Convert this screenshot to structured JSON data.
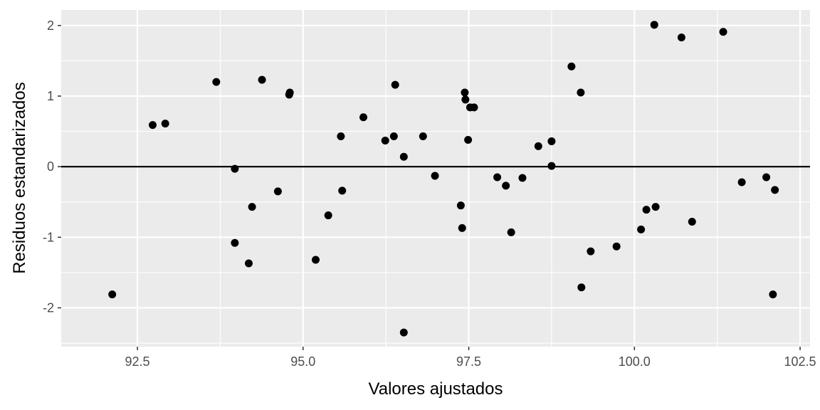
{
  "chart_data": {
    "type": "scatter",
    "title": "",
    "xlabel": "Valores ajustados",
    "ylabel": "Residuos estandarizados",
    "xlim": [
      91.35,
      102.65
    ],
    "ylim": [
      -2.55,
      2.22
    ],
    "xticks": [
      92.5,
      95.0,
      97.5,
      100.0,
      102.5
    ],
    "xtick_labels": [
      "92.5",
      "95.0",
      "97.5",
      "100.0",
      "102.5"
    ],
    "yticks": [
      -2,
      -1,
      0,
      1,
      2
    ],
    "ytick_labels": [
      "-2",
      "-1",
      "0",
      "1",
      "2"
    ],
    "grid": true,
    "hline": 0,
    "colors": {
      "panel": "#ebebeb",
      "grid": "#ffffff",
      "point": "#000000",
      "hline": "#000000"
    },
    "points": [
      {
        "x": 92.12,
        "y": -1.81
      },
      {
        "x": 92.73,
        "y": 0.59
      },
      {
        "x": 92.92,
        "y": 0.61
      },
      {
        "x": 93.69,
        "y": 1.2
      },
      {
        "x": 93.97,
        "y": -0.03
      },
      {
        "x": 93.97,
        "y": -1.08
      },
      {
        "x": 94.18,
        "y": -1.37
      },
      {
        "x": 94.23,
        "y": -0.57
      },
      {
        "x": 94.38,
        "y": 1.23
      },
      {
        "x": 94.62,
        "y": -0.35
      },
      {
        "x": 94.79,
        "y": 1.02
      },
      {
        "x": 94.8,
        "y": 1.05
      },
      {
        "x": 95.19,
        "y": -1.32
      },
      {
        "x": 95.38,
        "y": -0.69
      },
      {
        "x": 95.57,
        "y": 0.43
      },
      {
        "x": 95.59,
        "y": -0.34
      },
      {
        "x": 95.91,
        "y": 0.7
      },
      {
        "x": 96.24,
        "y": 0.37
      },
      {
        "x": 96.37,
        "y": 0.43
      },
      {
        "x": 96.39,
        "y": 1.16
      },
      {
        "x": 96.52,
        "y": 0.14
      },
      {
        "x": 96.52,
        "y": -2.35
      },
      {
        "x": 96.81,
        "y": 0.43
      },
      {
        "x": 96.99,
        "y": -0.13
      },
      {
        "x": 97.38,
        "y": -0.55
      },
      {
        "x": 97.4,
        "y": -0.87
      },
      {
        "x": 97.44,
        "y": 1.05
      },
      {
        "x": 97.45,
        "y": 0.95
      },
      {
        "x": 97.49,
        "y": 0.38
      },
      {
        "x": 97.52,
        "y": 0.84
      },
      {
        "x": 97.58,
        "y": 0.84
      },
      {
        "x": 97.93,
        "y": -0.15
      },
      {
        "x": 98.06,
        "y": -0.27
      },
      {
        "x": 98.14,
        "y": -0.93
      },
      {
        "x": 98.31,
        "y": -0.16
      },
      {
        "x": 98.55,
        "y": 0.29
      },
      {
        "x": 98.75,
        "y": 0.36
      },
      {
        "x": 98.75,
        "y": 0.01
      },
      {
        "x": 99.05,
        "y": 1.42
      },
      {
        "x": 99.19,
        "y": 1.05
      },
      {
        "x": 99.2,
        "y": -1.71
      },
      {
        "x": 99.34,
        "y": -1.2
      },
      {
        "x": 99.73,
        "y": -1.13
      },
      {
        "x": 100.1,
        "y": -0.89
      },
      {
        "x": 100.18,
        "y": -0.61
      },
      {
        "x": 100.3,
        "y": 2.01
      },
      {
        "x": 100.32,
        "y": -0.57
      },
      {
        "x": 100.71,
        "y": 1.83
      },
      {
        "x": 100.87,
        "y": -0.78
      },
      {
        "x": 101.34,
        "y": 1.91
      },
      {
        "x": 101.62,
        "y": -0.22
      },
      {
        "x": 101.99,
        "y": -0.15
      },
      {
        "x": 102.09,
        "y": -1.81
      },
      {
        "x": 102.12,
        "y": -0.33
      }
    ]
  }
}
